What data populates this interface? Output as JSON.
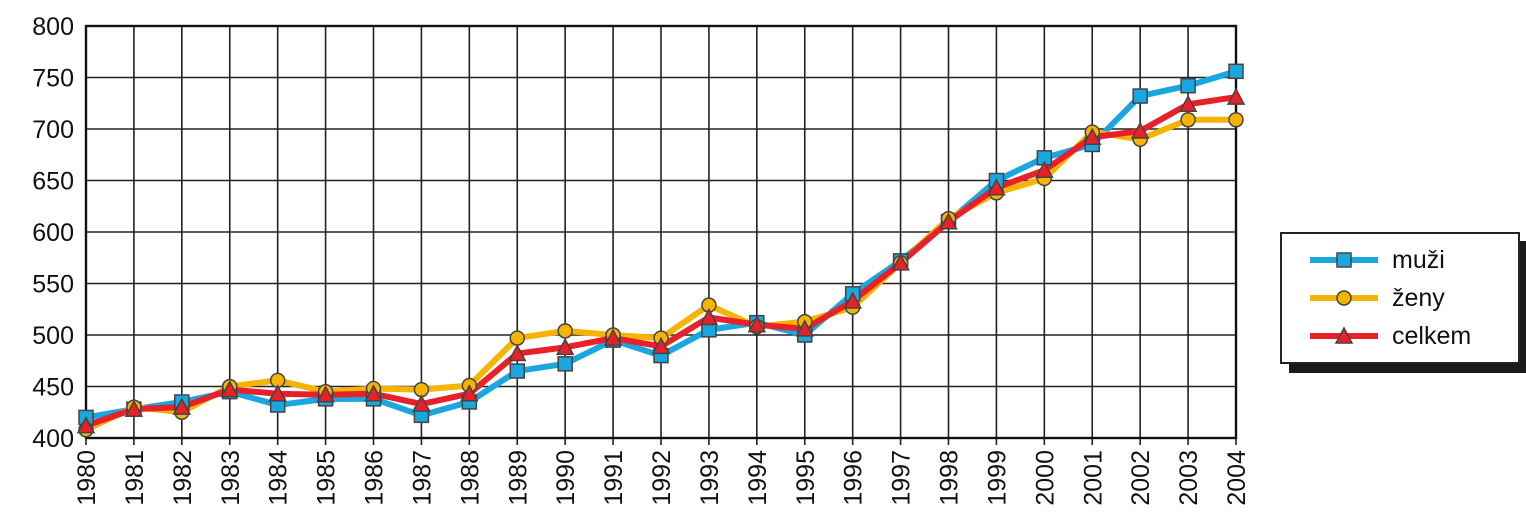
{
  "chart_data": {
    "type": "line",
    "title": "",
    "xlabel": "",
    "ylabel": "",
    "ylim": [
      400,
      800
    ],
    "yticks": [
      400,
      450,
      500,
      550,
      600,
      650,
      700,
      750,
      800
    ],
    "grid": true,
    "legend_position": "right",
    "x": [
      "1980",
      "1981",
      "1982",
      "1983",
      "1984",
      "1985",
      "1986",
      "1987",
      "1988",
      "1989",
      "1990",
      "1991",
      "1992",
      "1993",
      "1994",
      "1995",
      "1996",
      "1997",
      "1998",
      "1999",
      "2000",
      "2001",
      "2002",
      "2003",
      "2004"
    ],
    "series": [
      {
        "name": "muži",
        "color": "#1aa7e0",
        "marker": "square",
        "values": [
          420,
          428,
          435,
          445,
          432,
          438,
          438,
          422,
          435,
          465,
          472,
          495,
          480,
          505,
          512,
          500,
          540,
          572,
          610,
          650,
          672,
          685,
          732,
          742,
          756
        ]
      },
      {
        "name": "ženy",
        "color": "#f5b400",
        "marker": "circle",
        "values": [
          408,
          430,
          425,
          450,
          456,
          445,
          448,
          447,
          451,
          497,
          504,
          500,
          497,
          529,
          508,
          513,
          527,
          570,
          613,
          638,
          652,
          697,
          690,
          709,
          709
        ]
      },
      {
        "name": "celkem",
        "color": "#e8202a",
        "marker": "triangle",
        "values": [
          412,
          428,
          430,
          447,
          443,
          442,
          443,
          433,
          443,
          482,
          488,
          497,
          489,
          517,
          510,
          506,
          533,
          570,
          610,
          643,
          660,
          692,
          698,
          724,
          731
        ]
      }
    ]
  }
}
